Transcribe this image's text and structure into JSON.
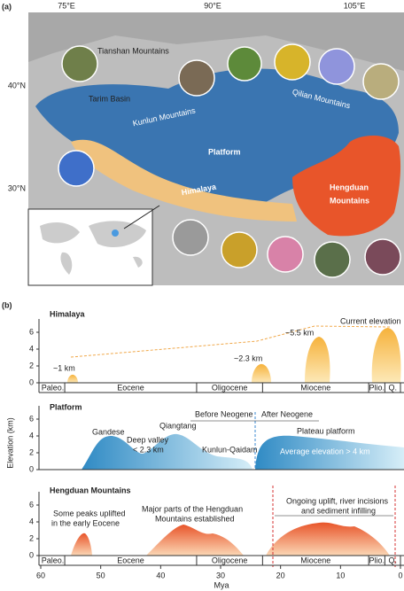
{
  "panel_a": {
    "label": "(a)",
    "lon_labels": [
      "75°E",
      "90°E",
      "105°E"
    ],
    "lat_labels": [
      "40°N",
      "30°N"
    ],
    "regions": {
      "tianshan": "Tianshan Mountains",
      "tarim": "Tarim Basin",
      "kunlun": "Kunlun Mountains",
      "qilian": "Qilian Mountains",
      "platform": "Platform",
      "himalaya": "Himalaya",
      "hengduan": [
        "Hengduan",
        "Mountains"
      ]
    }
  },
  "panel_b": {
    "label": "(b)",
    "x_label": "Mya",
    "y_label": "Elevation (km)",
    "xlim": [
      60,
      0
    ],
    "xticks": [
      60,
      50,
      40,
      30,
      20,
      10,
      0
    ],
    "yticks": [
      0,
      2,
      4,
      6
    ],
    "epochs": [
      {
        "name": "Paleo.",
        "start": 60,
        "end": 56
      },
      {
        "name": "Eocene",
        "start": 56,
        "end": 34
      },
      {
        "name": "Oligocene",
        "start": 34,
        "end": 23
      },
      {
        "name": "Miocene",
        "start": 23,
        "end": 5.3
      },
      {
        "name": "Plio.",
        "start": 5.3,
        "end": 2.6
      },
      {
        "name": "Q.",
        "start": 2.6,
        "end": 0
      }
    ],
    "himalaya": {
      "title": "Himalaya",
      "notes": [
        "~1 km",
        "~2.3 km",
        "~5.5 km",
        "Current elevation"
      ]
    },
    "platform": {
      "title": "Platform",
      "notes": [
        "Gandese",
        "Deep valley",
        "< 2.3 km",
        "Qiangtang",
        "Kunlun-Qaidam",
        "Before Neogene",
        "After Neogene",
        "Plateau platform",
        "Average elevation > 4 km"
      ]
    },
    "hengduan": {
      "title": "Hengduan Mountains",
      "notes": [
        "Some peaks uplifted",
        "in the early Eocene",
        "Major parts of the Hengduan",
        "Mountains established",
        "Ongoing uplift, river incisions",
        "and sediment infilling"
      ]
    }
  }
}
